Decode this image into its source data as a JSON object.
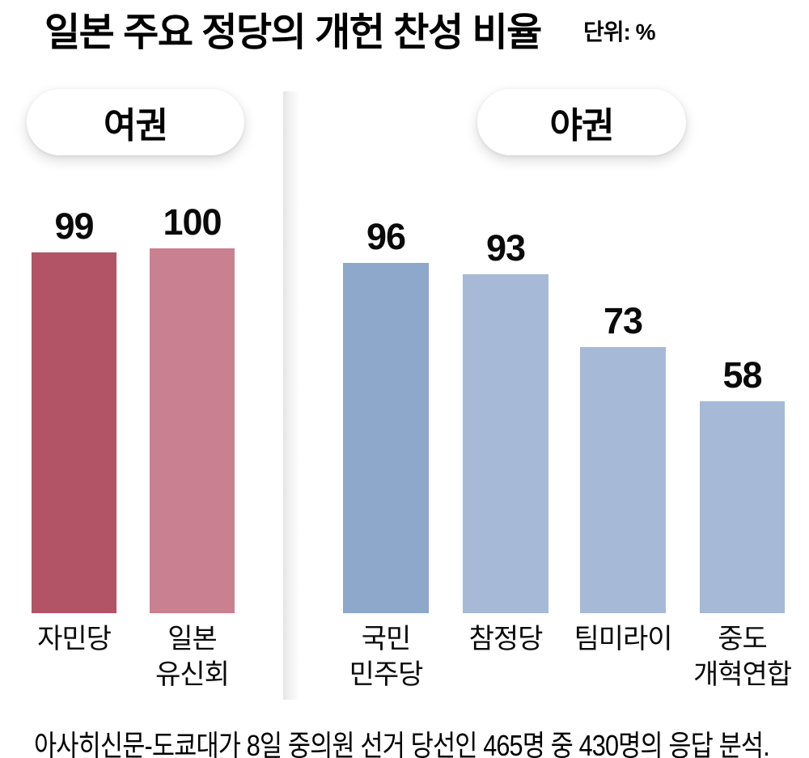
{
  "header": {
    "title": "일본 주요 정당의 개헌 찬성 비율",
    "unit_label": "단위: %"
  },
  "footer": {
    "source": "아사히신문-도쿄대가 8일 중의원 선거 당선인 465명 중 430명의 응답 분석."
  },
  "colors": {
    "ruling_dark": "#b35466",
    "ruling_light": "#c98090",
    "opposition_dark": "#8da8cb",
    "opposition_light": "#a6bad7",
    "divider": "#e5e5e7",
    "badge_bg": "#ffffff",
    "text": "#000000"
  },
  "chart_data": {
    "type": "bar",
    "title": "일본 주요 정당의 개헌 찬성 비율",
    "unit": "%",
    "ylim": [
      0,
      100
    ],
    "grid": false,
    "legend": "none",
    "groups": [
      {
        "id": "ruling",
        "label": "여권",
        "bars": [
          {
            "category": "자민당",
            "value": 99,
            "color": "#b35466"
          },
          {
            "category": "일본\n유신회",
            "value": 100,
            "color": "#c98090"
          }
        ]
      },
      {
        "id": "opposition",
        "label": "야권",
        "bars": [
          {
            "category": "국민\n민주당",
            "value": 96,
            "color": "#8da8cb"
          },
          {
            "category": "참정당",
            "value": 93,
            "color": "#a6bad7"
          },
          {
            "category": "팀미라이",
            "value": 73,
            "color": "#a6bad7"
          },
          {
            "category": "중도\n개혁연합",
            "value": 58,
            "color": "#a6bad7"
          }
        ]
      }
    ]
  }
}
